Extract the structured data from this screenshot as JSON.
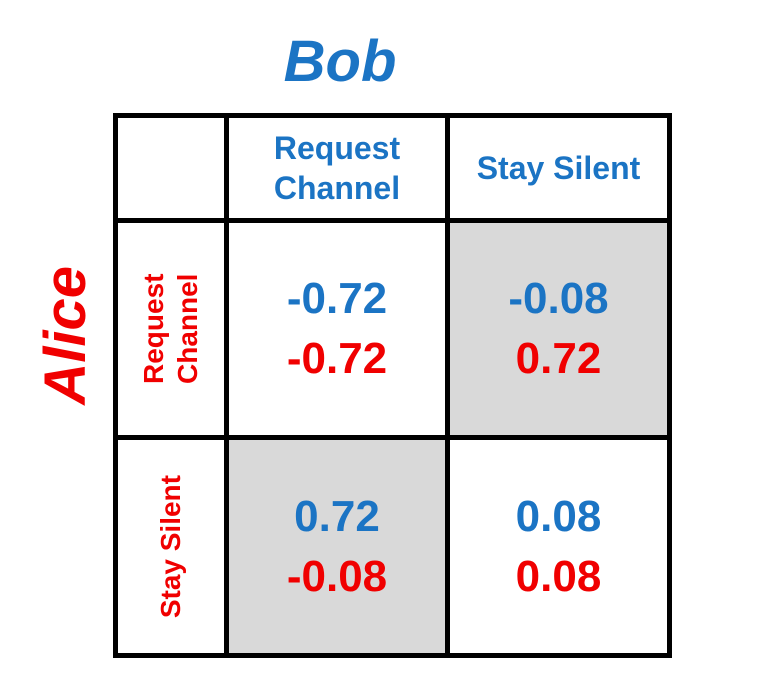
{
  "column_player": "Bob",
  "row_player": "Alice",
  "columns": [
    "Request Channel",
    "Stay Silent"
  ],
  "rows": [
    {
      "label": "Request Channel",
      "cells": [
        {
          "bob": -0.72,
          "alice": -0.72
        },
        {
          "bob": -0.08,
          "alice": 0.72
        }
      ]
    },
    {
      "label": "Stay Silent",
      "cells": [
        {
          "bob": 0.72,
          "alice": -0.08
        },
        {
          "bob": 0.08,
          "alice": 0.08
        }
      ]
    }
  ]
}
